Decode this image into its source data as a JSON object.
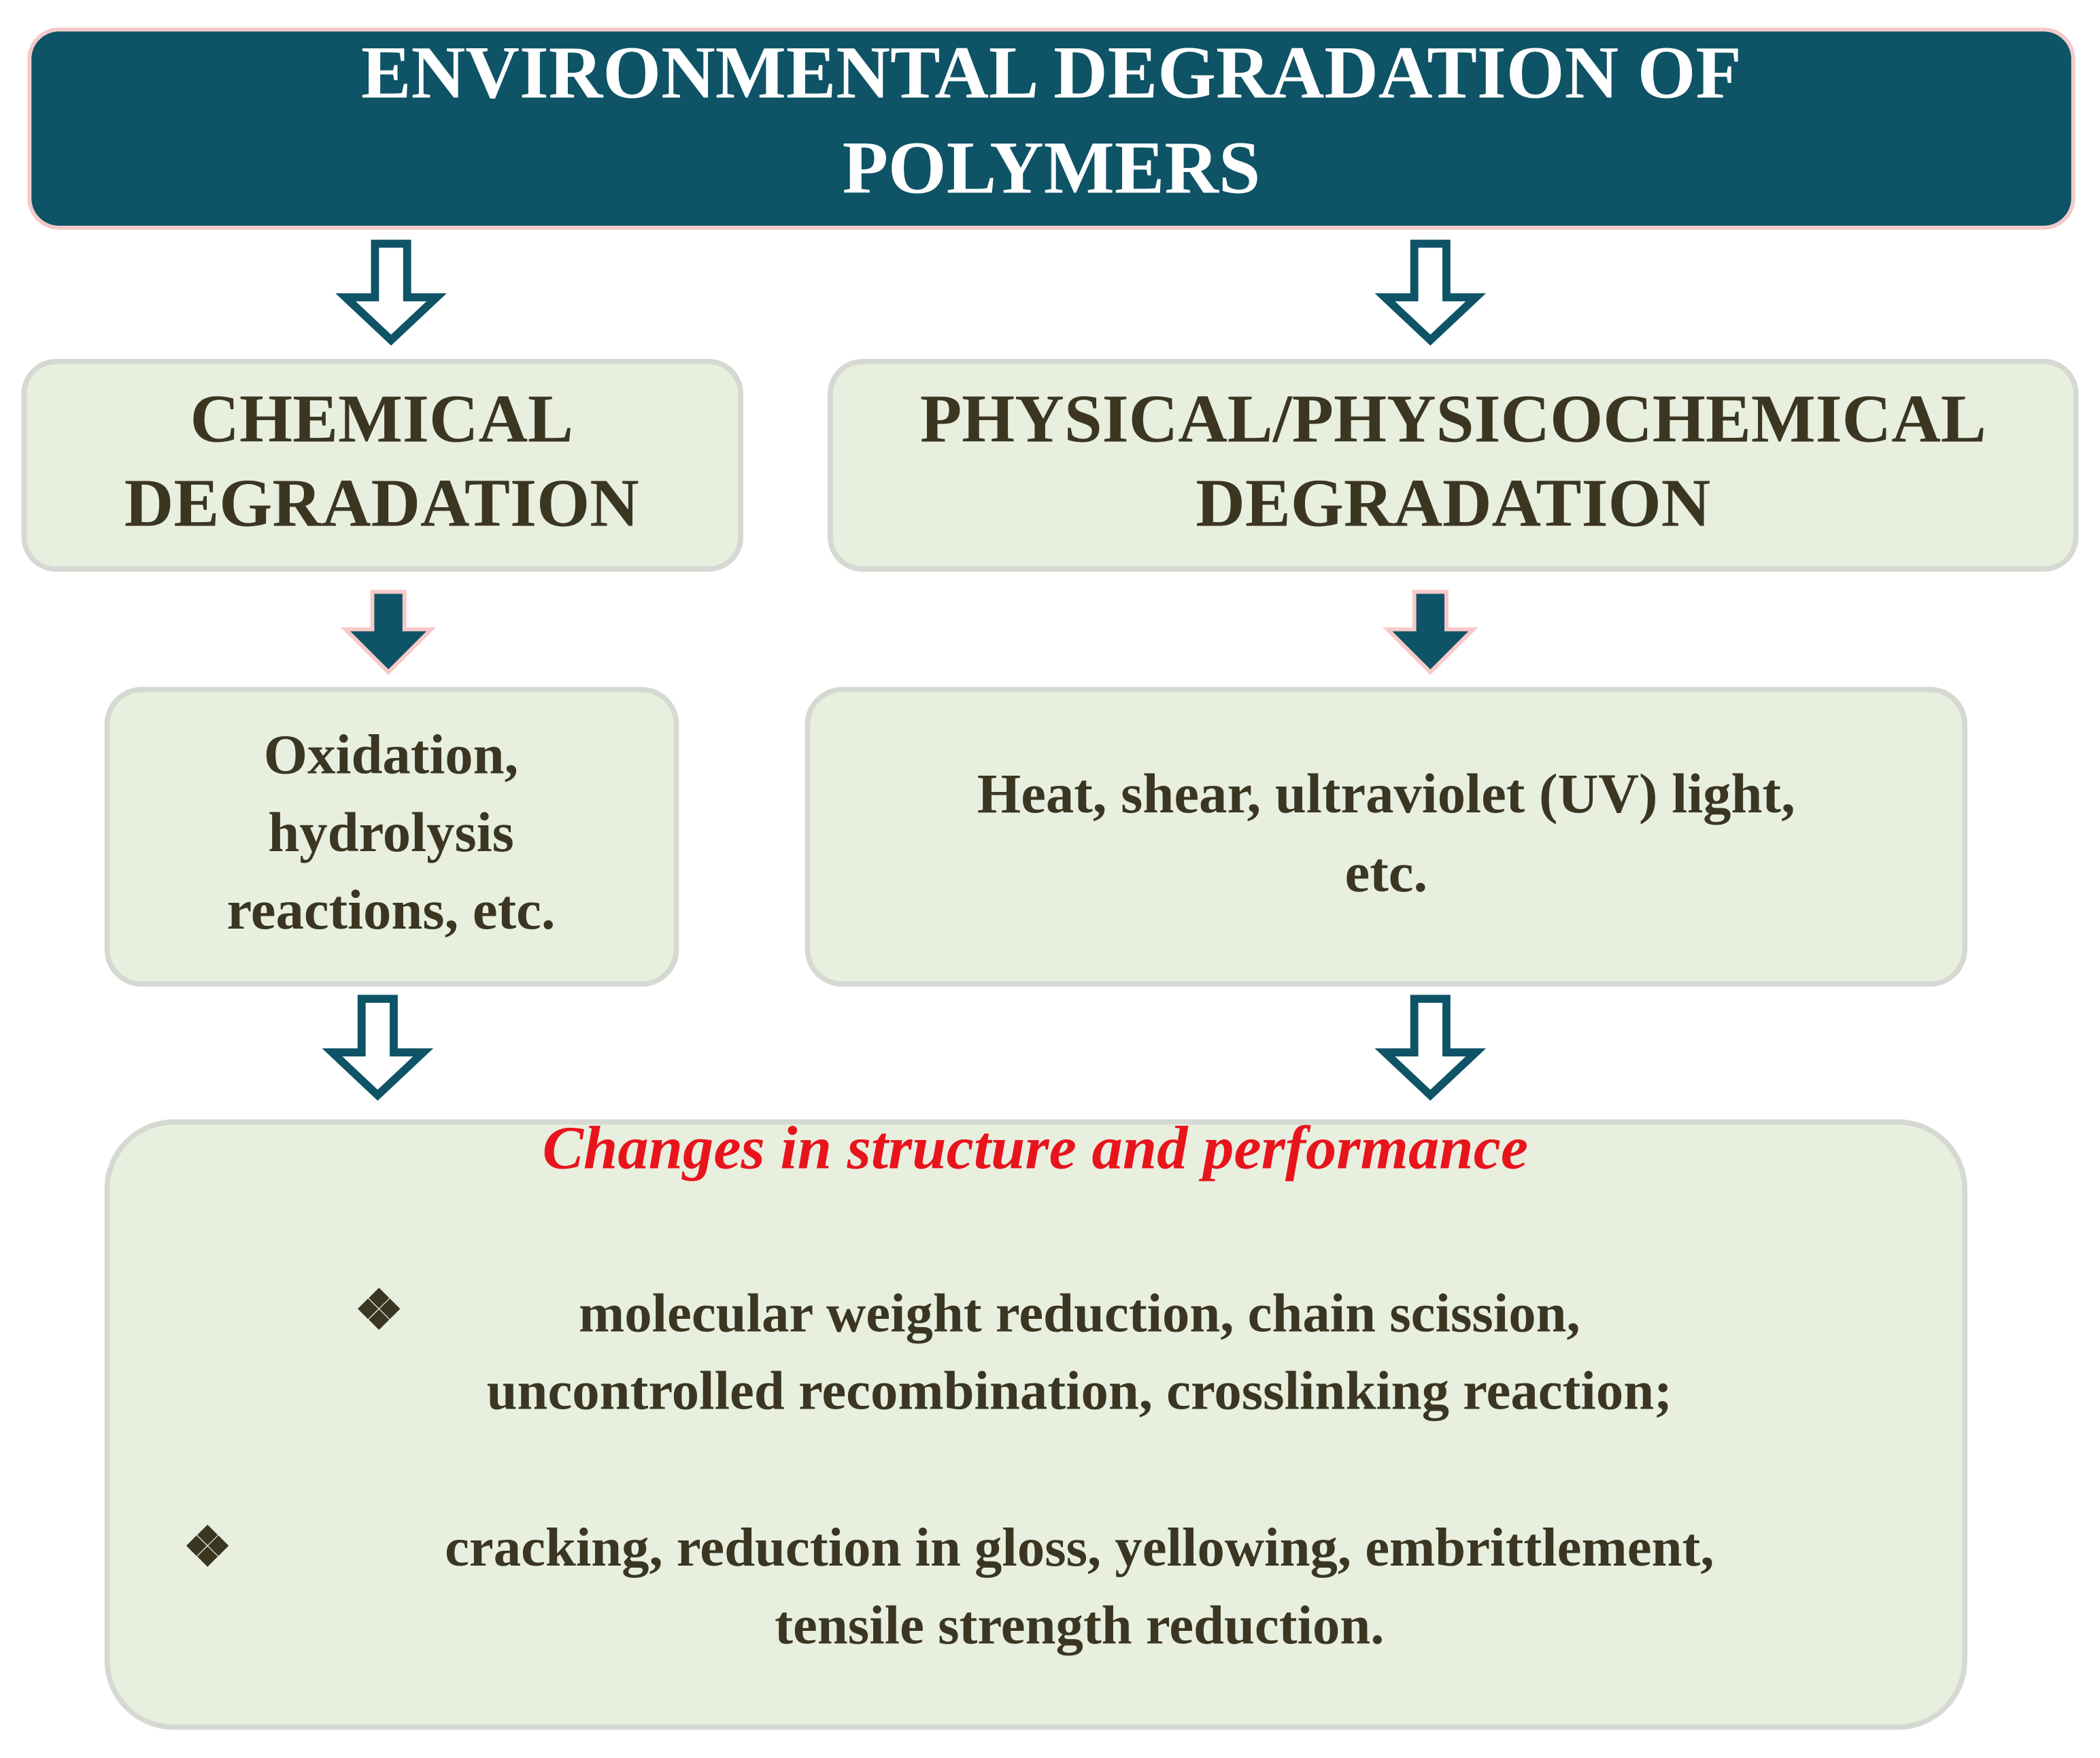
{
  "title": {
    "lines": [
      "ENVIRONMENTAL DEGRADATION OF",
      "POLYMERS"
    ]
  },
  "chemical": {
    "lines": [
      "CHEMICAL",
      "DEGRADATION"
    ]
  },
  "physical": {
    "lines": [
      "PHYSICAL/PHYSICOCHEMICAL",
      "DEGRADATION"
    ]
  },
  "chemical_causes": {
    "lines": [
      "Oxidation,",
      "hydrolysis",
      "reactions, etc."
    ]
  },
  "physical_causes": {
    "lines": [
      "Heat, shear, ultraviolet (UV) light,",
      "etc."
    ]
  },
  "changes": {
    "heading": "Changes in structure and performance",
    "items": [
      {
        "marker": "❖",
        "lines": [
          "molecular weight reduction, chain scission,",
          "uncontrolled recombination, crosslinking reaction;"
        ]
      },
      {
        "marker": "❖",
        "lines": [
          "cracking, reduction in gloss, yellowing, embrittlement,",
          "tensile strength reduction."
        ]
      }
    ]
  }
}
